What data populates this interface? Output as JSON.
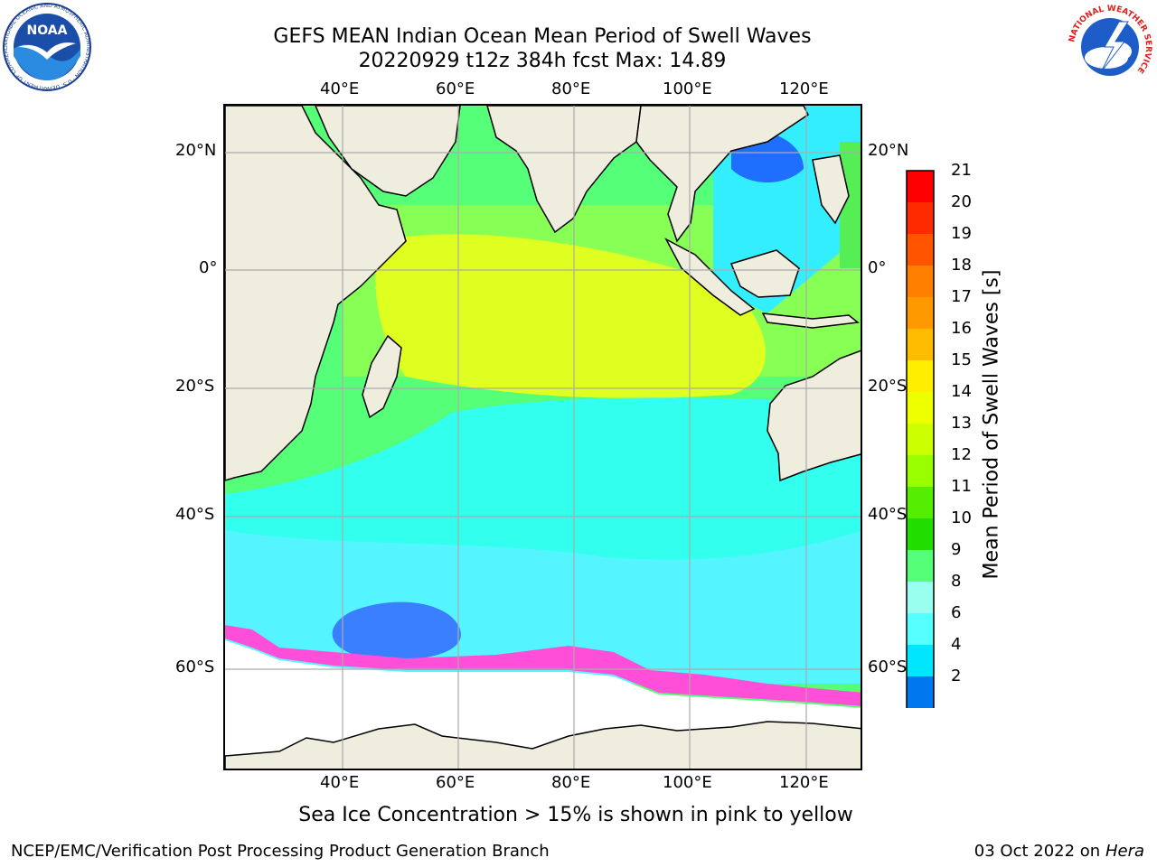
{
  "title": {
    "line1": "GEFS MEAN Indian Ocean Mean Period of Swell Waves",
    "line2": "20220929 t12z 384h fcst   Max: 14.89"
  },
  "map": {
    "lon_ticks": [
      "40°E",
      "60°E",
      "80°E",
      "100°E",
      "120°E"
    ],
    "lat_ticks": [
      "20°N",
      "0°",
      "20°S",
      "40°S",
      "60°S"
    ],
    "land_color": "#efeddd",
    "ice_region_color": "#ffffff"
  },
  "colorbar": {
    "title": "Mean Period of Swell Waves [s]",
    "labels": [
      "21",
      "20",
      "19",
      "18",
      "17",
      "16",
      "15",
      "14",
      "13",
      "12",
      "11",
      "10",
      "9",
      "8",
      "6",
      "4",
      "2"
    ],
    "colors": [
      "#ff0000",
      "#ff2a00",
      "#ff5500",
      "#ff7f00",
      "#ff9900",
      "#ffbb00",
      "#ffee00",
      "#eeff00",
      "#ccff00",
      "#99ff00",
      "#55ee00",
      "#22dd00",
      "#55ff77",
      "#99ffee",
      "#55ffff",
      "#00e6ff",
      "#0077ee"
    ],
    "under_color": "#0000ff"
  },
  "caption": "Sea Ice Concentration > 15% is shown in pink to yellow",
  "footer": {
    "left": "NCEP/EMC/Verification Post Processing Product Generation Branch",
    "right_date": "03 Oct 2022 on ",
    "right_host": "Hera"
  },
  "logos": {
    "noaa_text": "NOAA",
    "noaa_ring": "NATIONAL OCEANIC AND ATMOSPHERIC ADMINISTRATION · U.S. DEPARTMENT OF COMMERCE",
    "nws_ring": "NATIONAL WEATHER SERVICE"
  }
}
